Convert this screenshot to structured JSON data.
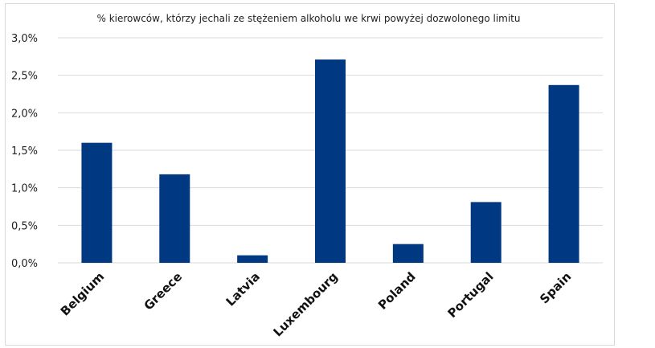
{
  "chart_data": {
    "type": "bar",
    "title": "% kierowców, którzy jechali ze stężeniem alkoholu we krwi powyżej dozwolonego limitu",
    "categories": [
      "Belgium",
      "Greece",
      "Latvia",
      "Luxembourg",
      "Poland",
      "Portugal",
      "Spain"
    ],
    "values": [
      1.6,
      1.18,
      0.1,
      2.71,
      0.25,
      0.81,
      2.37
    ],
    "y_ticks": [
      "0,0%",
      "0,5%",
      "1,0%",
      "1,5%",
      "2,0%",
      "2,5%",
      "3,0%"
    ],
    "ylim": [
      0,
      3.0
    ],
    "grid": true,
    "legend": "none",
    "bar_color": "#003882",
    "xlabel": "",
    "ylabel": ""
  }
}
